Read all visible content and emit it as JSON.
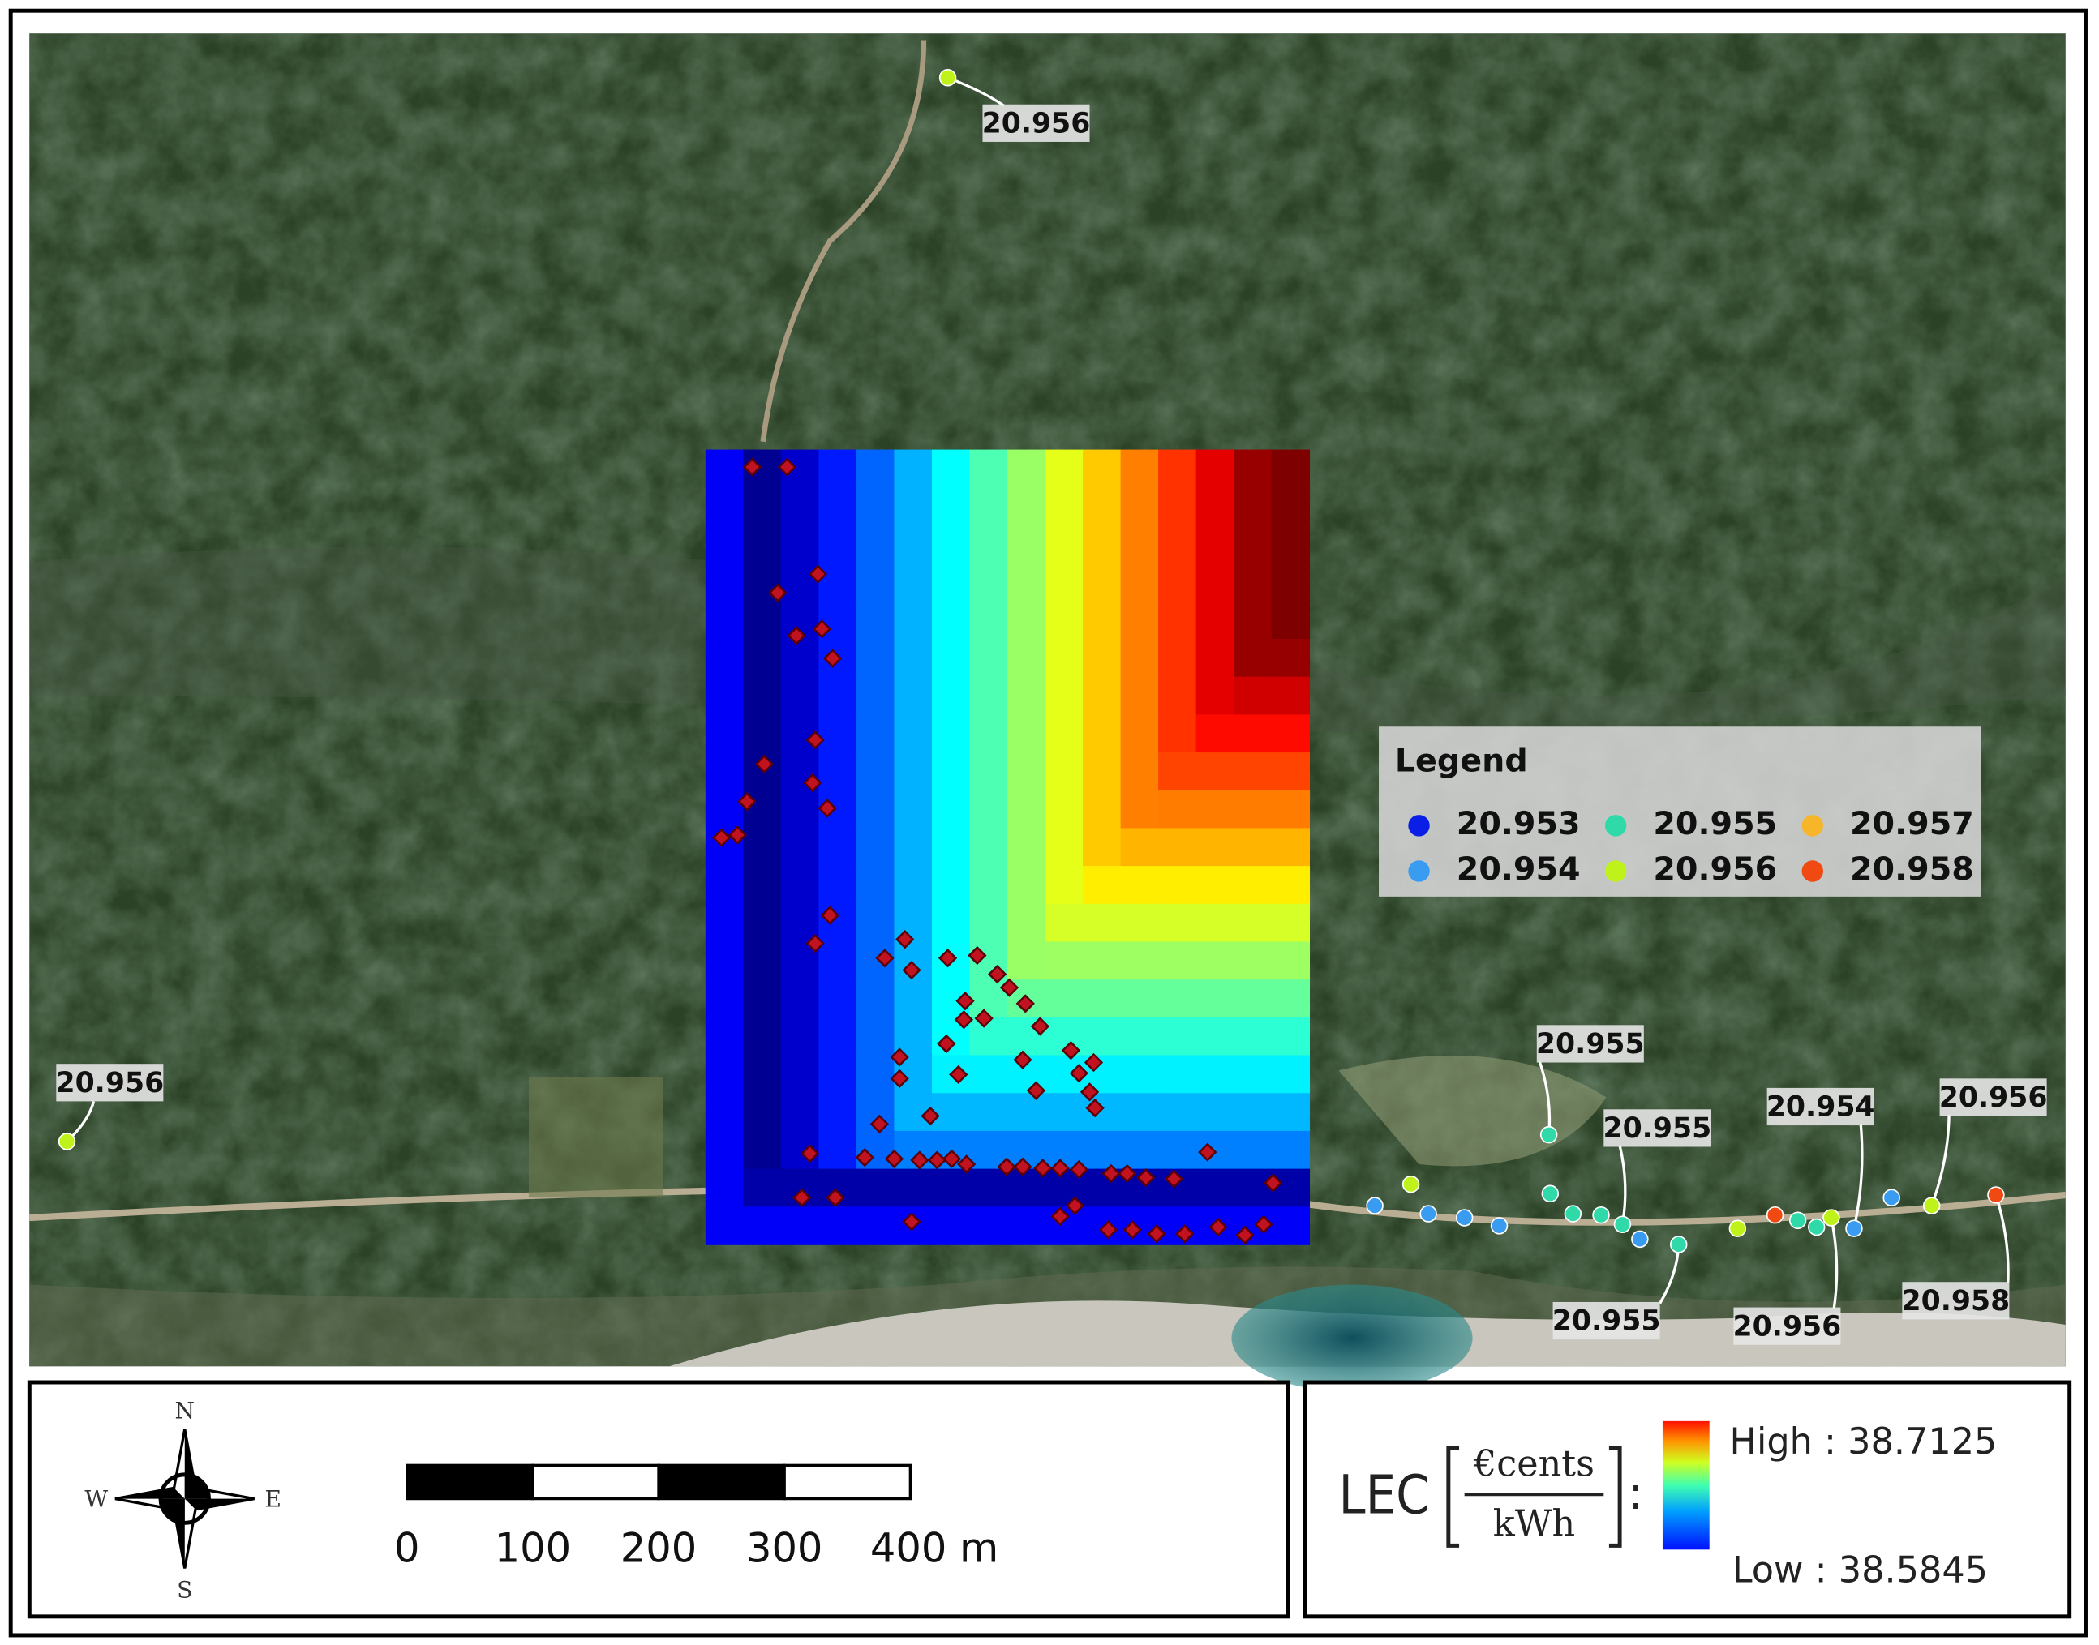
{
  "legend": {
    "title": "Legend",
    "items": [
      {
        "label": "20.953",
        "color": "#0b1ee6"
      },
      {
        "label": "20.954",
        "color": "#3a9cf0"
      },
      {
        "label": "20.955",
        "color": "#2fd9a8"
      },
      {
        "label": "20.956",
        "color": "#bff21a"
      },
      {
        "label": "20.957",
        "color": "#f7b52a"
      },
      {
        "label": "20.958",
        "color": "#f04a12"
      }
    ]
  },
  "point_labels": [
    "20.956",
    "20.956",
    "20.955",
    "20.955",
    "20.954",
    "20.956",
    "20.955",
    "20.956",
    "20.958"
  ],
  "scale_bar": {
    "labels": [
      "0",
      "100",
      "200",
      "300",
      "400 m"
    ]
  },
  "compass": {
    "north": "N",
    "south": "S",
    "west": "W",
    "east": "E"
  },
  "color_scale": {
    "title": "LEC",
    "unit_numerator": "€cents",
    "unit_denominator": "kWh",
    "separator": ":",
    "high": "High : 38.7125",
    "low": "Low : 38.5845"
  }
}
